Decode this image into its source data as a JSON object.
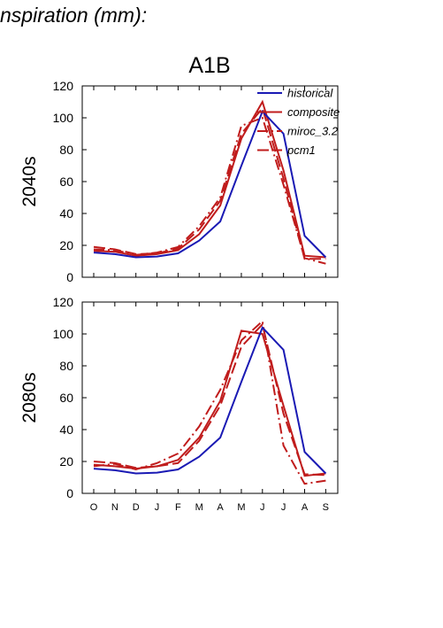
{
  "page_title": "nspiration (mm):",
  "figure": {
    "scenario": "A1B"
  },
  "colors": {
    "historical": "#1a1ab4",
    "model": "#c01c1c"
  },
  "chart_data": [
    {
      "type": "line",
      "title": "A1B",
      "panel_label": "2040s",
      "x": [
        "O",
        "N",
        "D",
        "J",
        "F",
        "M",
        "A",
        "M",
        "J",
        "J",
        "A",
        "S"
      ],
      "ylim": [
        0,
        120
      ],
      "yticks": [
        0,
        20,
        40,
        60,
        80,
        100,
        120
      ],
      "legend": {
        "position": "top-right",
        "entries": [
          "historical",
          "composite",
          "miroc_3.2",
          "pcm1"
        ]
      },
      "series": [
        {
          "name": "historical",
          "style": "solid",
          "values": [
            15.5,
            14.5,
            12.5,
            13.0,
            15.0,
            23.0,
            35.0,
            70.0,
            104.0,
            90.0,
            26.0,
            12.5
          ]
        },
        {
          "name": "composite",
          "style": "solid",
          "values": [
            16.5,
            16.0,
            13.5,
            14.5,
            17.0,
            27.0,
            45.0,
            87.0,
            110.0,
            67.0,
            13.5,
            12.5
          ]
        },
        {
          "name": "miroc_3.2",
          "style": "dashdot",
          "values": [
            17.5,
            17.0,
            14.0,
            15.5,
            19.0,
            32.0,
            50.0,
            95.0,
            100.0,
            58.0,
            12.0,
            8.5
          ]
        },
        {
          "name": "pcm1",
          "style": "longdash",
          "values": [
            19.0,
            17.5,
            14.5,
            15.0,
            18.0,
            30.0,
            48.0,
            90.0,
            106.0,
            62.0,
            11.5,
            11.5
          ]
        }
      ]
    },
    {
      "type": "line",
      "panel_label": "2080s",
      "x": [
        "O",
        "N",
        "D",
        "J",
        "F",
        "M",
        "A",
        "M",
        "J",
        "J",
        "A",
        "S"
      ],
      "ylim": [
        0,
        120
      ],
      "yticks": [
        0,
        20,
        40,
        60,
        80,
        100,
        120
      ],
      "series": [
        {
          "name": "historical",
          "style": "solid",
          "values": [
            15.5,
            14.5,
            12.5,
            13.0,
            15.0,
            23.0,
            35.0,
            70.0,
            104.0,
            90.0,
            26.0,
            12.5
          ]
        },
        {
          "name": "composite",
          "style": "solid",
          "values": [
            18.0,
            17.0,
            15.5,
            17.0,
            21.0,
            35.0,
            58.0,
            102.0,
            100.0,
            55.0,
            11.0,
            12.5
          ]
        },
        {
          "name": "miroc_3.2",
          "style": "dashdot",
          "values": [
            17.0,
            18.5,
            15.0,
            19.0,
            25.0,
            42.0,
            65.0,
            96.0,
            108.0,
            30.0,
            6.0,
            8.0
          ]
        },
        {
          "name": "pcm1",
          "style": "longdash",
          "values": [
            20.0,
            19.0,
            16.0,
            17.0,
            19.0,
            33.0,
            55.0,
            92.0,
            106.0,
            50.0,
            12.0,
            11.5
          ]
        }
      ]
    }
  ]
}
